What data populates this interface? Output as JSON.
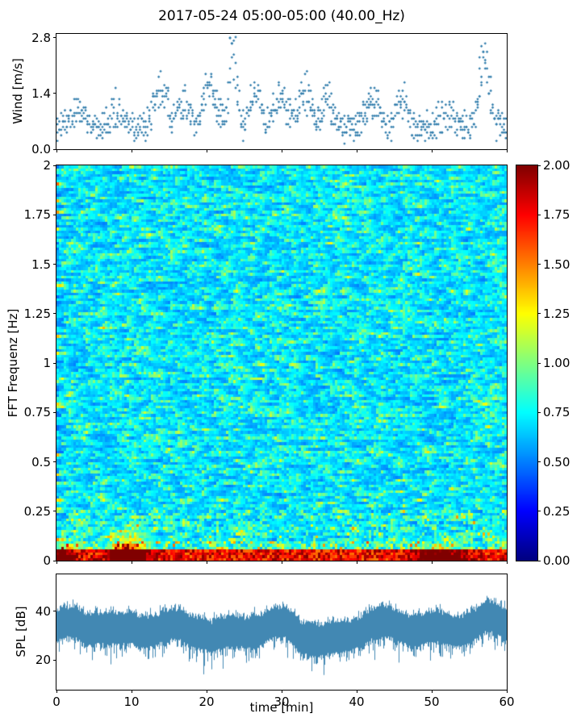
{
  "title": "2017-05-24 05:00-05:00 (40.00_Hz)",
  "colors": {
    "series": "#2e7bab",
    "axis": "#000000",
    "background": "#ffffff",
    "heat_cmap": "jet"
  },
  "chart_data": [
    {
      "id": "wind",
      "type": "scatter",
      "ylabel": "Wind [m/s]",
      "xlim": [
        0,
        60
      ],
      "ylim": [
        0,
        2.9
      ],
      "yticks": [
        {
          "v": 0,
          "label": "0.0"
        },
        {
          "v": 1.4,
          "label": "1.4"
        },
        {
          "v": 2.8,
          "label": "2.8"
        }
      ],
      "marker": "diamond",
      "gen": {
        "seed": 20170524,
        "n_times": 240,
        "samples_per_time": 3,
        "base": 0.55,
        "quantum": 0.07,
        "peaks": [
          {
            "t": 3,
            "h": 0.35,
            "s": 1.5
          },
          {
            "t": 8,
            "h": 0.5,
            "s": 1.2
          },
          {
            "t": 14,
            "h": 1.0,
            "s": 1.2
          },
          {
            "t": 17,
            "h": 0.6,
            "s": 1.0
          },
          {
            "t": 20.5,
            "h": 1.05,
            "s": 1.2
          },
          {
            "t": 23.5,
            "h": 2.05,
            "s": 0.7
          },
          {
            "t": 26.5,
            "h": 0.9,
            "s": 1.0
          },
          {
            "t": 30,
            "h": 0.7,
            "s": 1.5
          },
          {
            "t": 33,
            "h": 1.0,
            "s": 1.2
          },
          {
            "t": 36,
            "h": 0.8,
            "s": 1.0
          },
          {
            "t": 42,
            "h": 0.6,
            "s": 1.5
          },
          {
            "t": 46,
            "h": 0.7,
            "s": 1.0
          },
          {
            "t": 52,
            "h": 0.4,
            "s": 1.5
          },
          {
            "t": 57,
            "h": 1.75,
            "s": 1.0
          }
        ]
      }
    },
    {
      "id": "spectrogram",
      "type": "heatmap",
      "ylabel": "FFT Frequenz [Hz]",
      "xlim": [
        0,
        60
      ],
      "ylim": [
        0,
        2
      ],
      "yticks": [
        {
          "v": 0,
          "label": "0"
        },
        {
          "v": 0.25,
          "label": "0.25"
        },
        {
          "v": 0.5,
          "label": "0.5"
        },
        {
          "v": 0.75,
          "label": "0.75"
        },
        {
          "v": 1,
          "label": "1"
        },
        {
          "v": 1.25,
          "label": "1.25"
        },
        {
          "v": 1.5,
          "label": "1.5"
        },
        {
          "v": 1.75,
          "label": "1.75"
        },
        {
          "v": 2,
          "label": "2"
        }
      ],
      "colorbar": {
        "range": [
          0,
          2
        ],
        "ticks": [
          {
            "v": 0,
            "label": "0.00"
          },
          {
            "v": 0.25,
            "label": "0.25"
          },
          {
            "v": 0.5,
            "label": "0.50"
          },
          {
            "v": 0.75,
            "label": "0.75"
          },
          {
            "v": 1,
            "label": "1.00"
          },
          {
            "v": 1.25,
            "label": "1.25"
          },
          {
            "v": 1.5,
            "label": "1.50"
          },
          {
            "v": 1.75,
            "label": "1.75"
          },
          {
            "v": 2,
            "label": "2.00"
          }
        ]
      },
      "gen": {
        "seed": 40,
        "cols": 186,
        "rows": 140,
        "base_min": 0.45,
        "base_span": 0.35,
        "hotspots": [
          {
            "t": 9.5,
            "ts": 2.2,
            "fs": 0.11,
            "amp": 1.5
          },
          {
            "t": 51,
            "ts": 2.8,
            "fs": 0.06,
            "amp": 1.1
          },
          {
            "t": 0.8,
            "ts": 1.5,
            "fs": 0.07,
            "amp": 0.9
          }
        ]
      }
    },
    {
      "id": "spl",
      "type": "line",
      "ylabel": "SPL [dB]",
      "xlabel": "time [min]",
      "xlim": [
        0,
        60
      ],
      "ylim": [
        8,
        55
      ],
      "yticks": [
        {
          "v": 20,
          "label": "20"
        },
        {
          "v": 40,
          "label": "40"
        }
      ],
      "xticks": [
        {
          "v": 0,
          "label": "0"
        },
        {
          "v": 10,
          "label": "10"
        },
        {
          "v": 20,
          "label": "20"
        },
        {
          "v": 30,
          "label": "30"
        },
        {
          "v": 40,
          "label": "40"
        },
        {
          "v": 50,
          "label": "50"
        },
        {
          "v": 60,
          "label": "60"
        }
      ],
      "gen": {
        "seed": 77,
        "center": 31,
        "up_base": 5,
        "dn_base": 6,
        "peaks": [
          {
            "t": 1.5,
            "a": 2.5,
            "s": 2.5
          },
          {
            "t": 10,
            "a": 3,
            "s": 4
          },
          {
            "t": 22,
            "a": 1.5,
            "s": 3
          },
          {
            "t": 40,
            "a": 1.5,
            "s": 4
          },
          {
            "t": 49,
            "a": 3,
            "s": 4
          },
          {
            "t": 58,
            "a": 2.5,
            "s": 3
          }
        ]
      }
    }
  ]
}
